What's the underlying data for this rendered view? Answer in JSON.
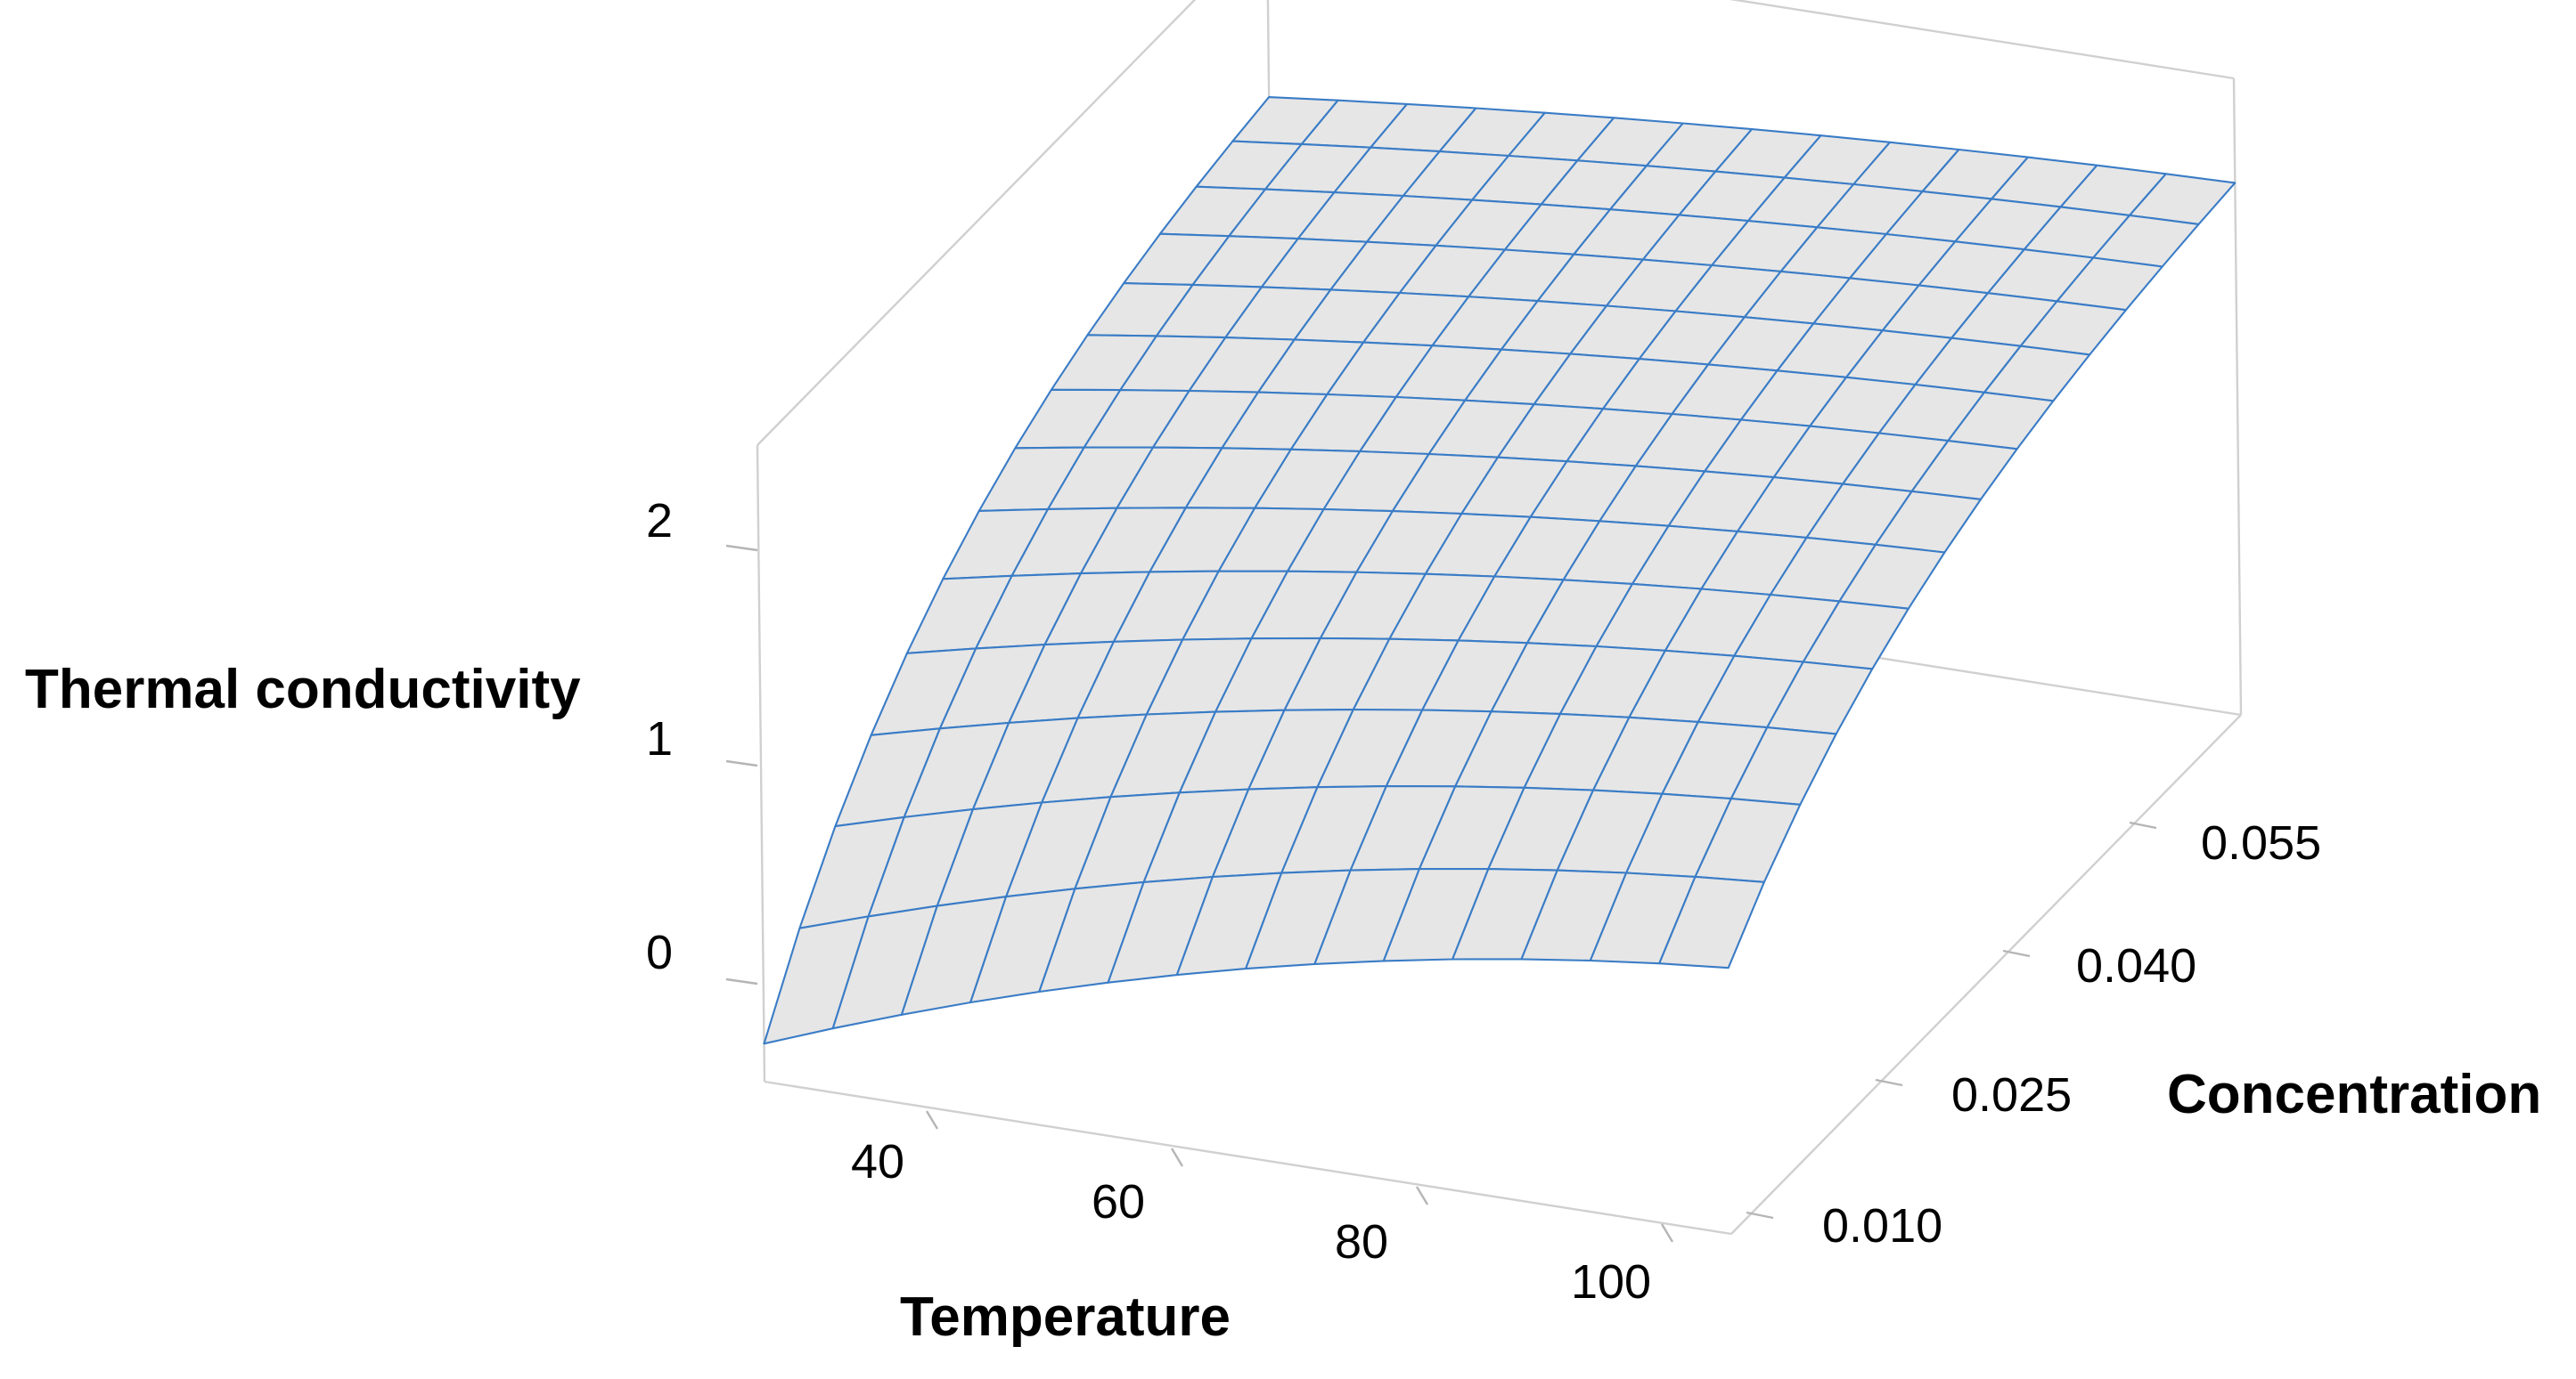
{
  "chart_data": {
    "type": "surface",
    "title": "",
    "xlabel": "Temperature",
    "ylabel": "Concentration",
    "zlabel": "Thermal conductivity",
    "x_ticks": [
      "40",
      "60",
      "80",
      "100"
    ],
    "y_ticks": [
      "0.010",
      "0.025",
      "0.040",
      "0.055"
    ],
    "z_ticks": [
      "0",
      "1",
      "2"
    ],
    "xlim": [
      25,
      100
    ],
    "ylim": [
      0.0,
      0.06
    ],
    "zlim": [
      -0.45,
      2.9
    ],
    "surface_corners": {
      "T25_C0": -0.25,
      "T100_C0": 0.95,
      "T25_C0.06": 2.0,
      "T100_C0.06": 2.35
    },
    "grid": "14x14 mesh",
    "surface_color": "#e6e6e6",
    "mesh_color": "#3a7cc6"
  }
}
